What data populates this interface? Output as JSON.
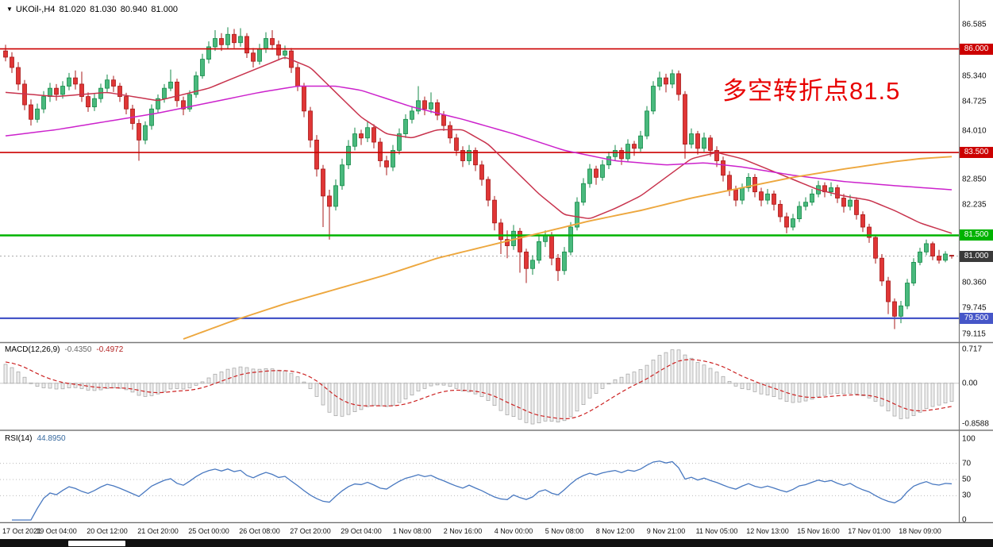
{
  "chart_header": {
    "menu_icon": "▼",
    "symbol_period": "UKOil-,H4",
    "open": "81.020",
    "high": "81.030",
    "low": "80.940",
    "close": "81.000"
  },
  "annotation": {
    "text": "多空转折点81.5",
    "color": "#e80000"
  },
  "chart_data": {
    "type": "candlestick",
    "symbol": "UKOil-",
    "timeframe": "H4",
    "ylim": [
      79.115,
      86.585
    ],
    "price_axis_labels": [
      "86.585",
      "85.340",
      "84.725",
      "84.010",
      "82.850",
      "82.235",
      "80.360",
      "79.745",
      "79.115"
    ],
    "price_badges": [
      {
        "label": "86.000",
        "price": 86.0,
        "bg": "#cc0000"
      },
      {
        "label": "83.500",
        "price": 83.5,
        "bg": "#cc0000"
      },
      {
        "label": "81.500",
        "price": 81.5,
        "bg": "#00b300"
      },
      {
        "label": "81.000",
        "price": 81.0,
        "bg": "#3a3a3a"
      },
      {
        "label": "79.500",
        "price": 79.5,
        "bg": "#4656c8"
      }
    ],
    "hlines": [
      {
        "price": 86.0,
        "color": "#cc0000",
        "width": 1.6,
        "style": "solid"
      },
      {
        "price": 83.5,
        "color": "#cc0000",
        "width": 1.6,
        "style": "solid"
      },
      {
        "price": 81.5,
        "color": "#00b300",
        "width": 2.5,
        "style": "solid"
      },
      {
        "price": 81.0,
        "color": "#a8a8a8",
        "width": 1,
        "style": "dotted"
      },
      {
        "price": 79.5,
        "color": "#4656c8",
        "width": 2.2,
        "style": "solid"
      }
    ],
    "candle_colors": {
      "bull_fill": "#49b97d",
      "bull_border": "#148a48",
      "bear_fill": "#e03636",
      "bear_border": "#a81818"
    },
    "time_labels": [
      "17 Oct 2021",
      "19 Oct 04:00",
      "20 Oct 12:00",
      "21 Oct 20:00",
      "25 Oct 00:00",
      "26 Oct 08:00",
      "27 Oct 20:00",
      "29 Oct 04:00",
      "1 Nov 08:00",
      "2 Nov 16:00",
      "4 Nov 00:00",
      "5 Nov 08:00",
      "8 Nov 12:00",
      "9 Nov 21:00",
      "11 Nov 05:00",
      "12 Nov 13:00",
      "15 Nov 16:00",
      "17 Nov 01:00",
      "18 Nov 09:00"
    ],
    "bars_per_label": 8,
    "ohlc": [
      [
        85.95,
        86.1,
        85.7,
        85.8
      ],
      [
        85.8,
        85.92,
        85.42,
        85.55
      ],
      [
        85.55,
        85.68,
        85.0,
        85.15
      ],
      [
        85.15,
        85.25,
        84.52,
        84.65
      ],
      [
        84.65,
        84.78,
        84.15,
        84.3
      ],
      [
        84.3,
        84.68,
        84.22,
        84.55
      ],
      [
        84.55,
        84.98,
        84.45,
        84.85
      ],
      [
        84.85,
        85.18,
        84.72,
        85.05
      ],
      [
        85.05,
        85.15,
        84.75,
        84.9
      ],
      [
        84.9,
        85.22,
        84.8,
        85.1
      ],
      [
        85.1,
        85.42,
        85.0,
        85.3
      ],
      [
        85.3,
        85.48,
        85.02,
        85.15
      ],
      [
        85.15,
        85.45,
        84.72,
        84.85
      ],
      [
        84.85,
        84.95,
        84.48,
        84.6
      ],
      [
        84.6,
        84.92,
        84.5,
        84.8
      ],
      [
        84.8,
        85.16,
        84.7,
        85.05
      ],
      [
        85.05,
        85.38,
        84.95,
        85.25
      ],
      [
        85.25,
        85.35,
        84.96,
        85.1
      ],
      [
        85.1,
        85.18,
        84.72,
        84.85
      ],
      [
        84.85,
        84.94,
        84.42,
        84.55
      ],
      [
        84.55,
        84.65,
        84.05,
        84.2
      ],
      [
        84.2,
        84.3,
        83.3,
        83.8
      ],
      [
        83.8,
        84.25,
        83.7,
        84.15
      ],
      [
        84.15,
        84.66,
        84.05,
        84.55
      ],
      [
        84.55,
        84.9,
        84.45,
        84.8
      ],
      [
        84.8,
        85.15,
        84.7,
        85.05
      ],
      [
        85.05,
        85.5,
        84.98,
        85.2
      ],
      [
        85.2,
        85.28,
        84.6,
        84.75
      ],
      [
        84.75,
        84.85,
        84.4,
        84.55
      ],
      [
        84.55,
        85.0,
        84.48,
        84.9
      ],
      [
        84.9,
        85.45,
        84.82,
        85.35
      ],
      [
        85.35,
        85.88,
        85.28,
        85.75
      ],
      [
        85.75,
        86.18,
        85.65,
        86.05
      ],
      [
        86.05,
        86.45,
        85.95,
        86.25
      ],
      [
        86.25,
        86.38,
        85.95,
        86.1
      ],
      [
        86.1,
        86.52,
        86.0,
        86.35
      ],
      [
        86.35,
        86.48,
        86.02,
        86.15
      ],
      [
        86.15,
        86.5,
        86.05,
        86.3
      ],
      [
        86.3,
        86.38,
        85.78,
        85.9
      ],
      [
        85.9,
        86.02,
        85.55,
        85.7
      ],
      [
        85.7,
        86.12,
        85.62,
        86.0
      ],
      [
        86.0,
        86.4,
        85.9,
        86.25
      ],
      [
        86.25,
        86.45,
        85.98,
        86.1
      ],
      [
        86.1,
        86.2,
        85.72,
        85.85
      ],
      [
        85.85,
        86.08,
        85.75,
        85.95
      ],
      [
        85.95,
        86.02,
        85.42,
        85.55
      ],
      [
        85.55,
        85.65,
        84.98,
        85.1
      ],
      [
        85.1,
        85.18,
        84.35,
        84.5
      ],
      [
        84.5,
        84.6,
        83.62,
        83.8
      ],
      [
        83.8,
        83.92,
        82.92,
        83.1
      ],
      [
        83.1,
        83.2,
        81.7,
        82.45
      ],
      [
        82.45,
        82.6,
        81.4,
        82.2
      ],
      [
        82.2,
        82.85,
        82.1,
        82.7
      ],
      [
        82.7,
        83.35,
        82.6,
        83.2
      ],
      [
        83.2,
        83.8,
        83.1,
        83.65
      ],
      [
        83.65,
        84.1,
        83.55,
        83.95
      ],
      [
        83.95,
        84.05,
        83.68,
        83.85
      ],
      [
        83.85,
        84.25,
        83.75,
        84.1
      ],
      [
        84.1,
        84.18,
        83.6,
        83.75
      ],
      [
        83.75,
        83.85,
        83.15,
        83.3
      ],
      [
        83.3,
        83.42,
        82.95,
        83.15
      ],
      [
        83.15,
        83.68,
        83.05,
        83.55
      ],
      [
        83.55,
        84.08,
        83.45,
        83.95
      ],
      [
        83.95,
        84.42,
        83.85,
        84.3
      ],
      [
        84.3,
        84.62,
        84.2,
        84.5
      ],
      [
        84.5,
        85.1,
        84.42,
        84.75
      ],
      [
        84.75,
        84.85,
        84.4,
        84.55
      ],
      [
        84.55,
        84.95,
        84.45,
        84.7
      ],
      [
        84.7,
        84.78,
        84.28,
        84.4
      ],
      [
        84.4,
        84.5,
        84.02,
        84.15
      ],
      [
        84.15,
        84.25,
        83.72,
        83.85
      ],
      [
        83.85,
        83.95,
        83.42,
        83.55
      ],
      [
        83.55,
        83.65,
        83.15,
        83.3
      ],
      [
        83.3,
        83.68,
        83.2,
        83.55
      ],
      [
        83.55,
        83.62,
        83.05,
        83.2
      ],
      [
        83.2,
        83.3,
        82.7,
        82.85
      ],
      [
        82.85,
        82.92,
        82.2,
        82.35
      ],
      [
        82.35,
        82.45,
        81.62,
        81.8
      ],
      [
        81.8,
        81.9,
        81.05,
        81.4
      ],
      [
        81.4,
        81.62,
        80.95,
        81.25
      ],
      [
        81.25,
        81.75,
        81.15,
        81.6
      ],
      [
        81.6,
        81.68,
        80.6,
        81.1
      ],
      [
        81.1,
        81.18,
        80.35,
        80.7
      ],
      [
        80.7,
        81.02,
        80.55,
        80.9
      ],
      [
        80.9,
        81.48,
        80.82,
        81.35
      ],
      [
        81.35,
        81.62,
        81.22,
        81.5
      ],
      [
        81.5,
        81.58,
        80.78,
        80.95
      ],
      [
        80.95,
        81.05,
        80.4,
        80.65
      ],
      [
        80.65,
        81.22,
        80.55,
        81.1
      ],
      [
        81.1,
        81.82,
        81.02,
        81.7
      ],
      [
        81.7,
        82.42,
        81.62,
        82.3
      ],
      [
        82.3,
        82.88,
        82.22,
        82.75
      ],
      [
        82.75,
        83.22,
        82.65,
        83.1
      ],
      [
        83.1,
        83.18,
        82.72,
        82.9
      ],
      [
        82.9,
        83.32,
        82.82,
        83.2
      ],
      [
        83.2,
        83.52,
        83.1,
        83.4
      ],
      [
        83.4,
        83.68,
        83.3,
        83.55
      ],
      [
        83.55,
        83.62,
        83.2,
        83.35
      ],
      [
        83.35,
        83.82,
        83.28,
        83.7
      ],
      [
        83.7,
        83.78,
        83.42,
        83.6
      ],
      [
        83.6,
        84.02,
        83.52,
        83.9
      ],
      [
        83.9,
        84.62,
        83.82,
        84.5
      ],
      [
        84.5,
        85.22,
        84.42,
        85.1
      ],
      [
        85.1,
        85.45,
        85.0,
        85.3
      ],
      [
        85.3,
        85.4,
        84.95,
        85.15
      ],
      [
        85.15,
        85.5,
        85.05,
        85.4
      ],
      [
        85.4,
        85.48,
        84.75,
        84.9
      ],
      [
        84.9,
        84.98,
        83.35,
        83.7
      ],
      [
        83.7,
        84.08,
        83.6,
        83.95
      ],
      [
        83.95,
        84.02,
        83.45,
        83.6
      ],
      [
        83.6,
        83.98,
        83.52,
        83.85
      ],
      [
        83.85,
        83.92,
        83.4,
        83.55
      ],
      [
        83.55,
        83.65,
        83.15,
        83.3
      ],
      [
        83.3,
        83.4,
        82.8,
        82.95
      ],
      [
        82.95,
        83.05,
        82.45,
        82.6
      ],
      [
        82.6,
        82.7,
        82.2,
        82.35
      ],
      [
        82.35,
        82.75,
        82.25,
        82.65
      ],
      [
        82.65,
        83.0,
        82.55,
        82.9
      ],
      [
        82.9,
        82.98,
        82.42,
        82.55
      ],
      [
        82.55,
        82.65,
        82.2,
        82.35
      ],
      [
        82.35,
        82.62,
        82.25,
        82.5
      ],
      [
        82.5,
        82.58,
        82.1,
        82.25
      ],
      [
        82.25,
        82.35,
        81.82,
        81.95
      ],
      [
        81.95,
        82.05,
        81.55,
        81.7
      ],
      [
        81.7,
        82.02,
        81.62,
        81.9
      ],
      [
        81.9,
        82.32,
        81.82,
        82.2
      ],
      [
        82.2,
        82.42,
        82.1,
        82.3
      ],
      [
        82.3,
        82.62,
        82.22,
        82.5
      ],
      [
        82.5,
        82.82,
        82.42,
        82.7
      ],
      [
        82.7,
        82.78,
        82.42,
        82.55
      ],
      [
        82.55,
        82.78,
        82.45,
        82.65
      ],
      [
        82.65,
        82.72,
        82.28,
        82.4
      ],
      [
        82.4,
        82.5,
        82.05,
        82.2
      ],
      [
        82.2,
        82.48,
        82.1,
        82.35
      ],
      [
        82.35,
        82.42,
        81.88,
        82.0
      ],
      [
        82.0,
        82.08,
        81.58,
        81.7
      ],
      [
        81.7,
        81.78,
        81.32,
        81.45
      ],
      [
        81.45,
        81.52,
        80.82,
        80.95
      ],
      [
        80.95,
        81.05,
        80.28,
        80.4
      ],
      [
        80.4,
        80.5,
        79.6,
        79.9
      ],
      [
        79.9,
        79.98,
        79.24,
        79.55
      ],
      [
        79.55,
        79.92,
        79.38,
        79.8
      ],
      [
        79.8,
        80.45,
        79.72,
        80.35
      ],
      [
        80.35,
        80.95,
        80.28,
        80.85
      ],
      [
        80.85,
        81.2,
        80.78,
        81.1
      ],
      [
        81.1,
        81.4,
        81.02,
        81.3
      ],
      [
        81.3,
        81.35,
        80.9,
        81.0
      ],
      [
        81.0,
        81.15,
        80.82,
        80.9
      ],
      [
        80.9,
        81.12,
        80.85,
        81.05
      ],
      [
        81.02,
        81.03,
        80.94,
        81.0
      ]
    ],
    "moving_averages": [
      {
        "name": "ma-fast-red",
        "color": "#c8334d",
        "width": 1.5,
        "anchors": [
          [
            0,
            84.95
          ],
          [
            8,
            84.85
          ],
          [
            16,
            84.95
          ],
          [
            24,
            84.75
          ],
          [
            32,
            85.05
          ],
          [
            40,
            85.55
          ],
          [
            44,
            85.8
          ],
          [
            48,
            85.55
          ],
          [
            52,
            84.95
          ],
          [
            56,
            84.35
          ],
          [
            60,
            83.95
          ],
          [
            64,
            83.85
          ],
          [
            68,
            84.05
          ],
          [
            72,
            84.05
          ],
          [
            76,
            83.7
          ],
          [
            80,
            83.1
          ],
          [
            84,
            82.5
          ],
          [
            88,
            82.0
          ],
          [
            92,
            81.9
          ],
          [
            96,
            82.15
          ],
          [
            100,
            82.45
          ],
          [
            104,
            82.9
          ],
          [
            108,
            83.35
          ],
          [
            112,
            83.5
          ],
          [
            116,
            83.35
          ],
          [
            120,
            83.1
          ],
          [
            124,
            82.85
          ],
          [
            128,
            82.6
          ],
          [
            132,
            82.45
          ],
          [
            136,
            82.35
          ],
          [
            140,
            82.1
          ],
          [
            144,
            81.8
          ],
          [
            149,
            81.55
          ]
        ]
      },
      {
        "name": "ma-medium-magenta",
        "color": "#cc22cc",
        "width": 1.5,
        "anchors": [
          [
            0,
            83.9
          ],
          [
            8,
            84.05
          ],
          [
            16,
            84.25
          ],
          [
            24,
            84.45
          ],
          [
            32,
            84.7
          ],
          [
            40,
            84.95
          ],
          [
            46,
            85.1
          ],
          [
            52,
            85.1
          ],
          [
            56,
            85.0
          ],
          [
            64,
            84.6
          ],
          [
            72,
            84.3
          ],
          [
            80,
            83.95
          ],
          [
            88,
            83.55
          ],
          [
            96,
            83.3
          ],
          [
            104,
            83.2
          ],
          [
            110,
            83.25
          ],
          [
            116,
            83.15
          ],
          [
            124,
            82.95
          ],
          [
            132,
            82.8
          ],
          [
            140,
            82.7
          ],
          [
            149,
            82.6
          ]
        ]
      },
      {
        "name": "ma-slow-orange",
        "color": "#eda73e",
        "width": 1.9,
        "anchors": [
          [
            28,
            79.0
          ],
          [
            36,
            79.45
          ],
          [
            44,
            79.85
          ],
          [
            52,
            80.2
          ],
          [
            60,
            80.55
          ],
          [
            68,
            80.95
          ],
          [
            76,
            81.25
          ],
          [
            84,
            81.55
          ],
          [
            92,
            81.85
          ],
          [
            100,
            82.1
          ],
          [
            108,
            82.4
          ],
          [
            116,
            82.65
          ],
          [
            124,
            82.9
          ],
          [
            132,
            83.1
          ],
          [
            140,
            83.28
          ],
          [
            144,
            83.35
          ],
          [
            149,
            83.4
          ]
        ]
      }
    ],
    "indicators": [
      {
        "id": "macd",
        "label": "MACD(12,26,9)",
        "value_main": "-0.4350",
        "value_signal": "-0.4972",
        "fast": 12,
        "slow": 26,
        "smooth": 9,
        "range": [
          -0.8588,
          0.717
        ],
        "axis_labels": [
          "0.717",
          "0.00",
          "-0.8588"
        ],
        "histogram_fill": "#ededed",
        "histogram_border": "#a0a0a0",
        "signal_color": "#cc2222"
      },
      {
        "id": "rsi",
        "label": "RSI(14)",
        "value": "44.8950",
        "period": 14,
        "range": [
          0,
          100
        ],
        "axis_labels": [
          "100",
          "70",
          "50",
          "30",
          "0"
        ],
        "levels": [
          70,
          50,
          30
        ],
        "line_color": "#4878c0"
      }
    ]
  }
}
